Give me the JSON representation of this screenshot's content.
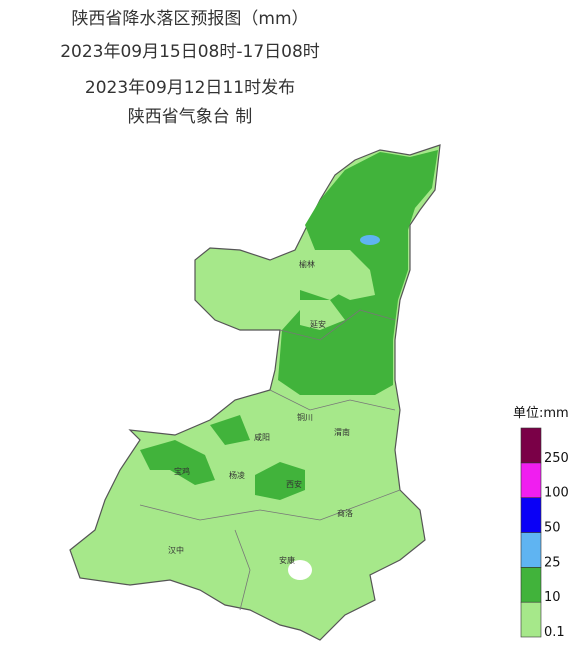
{
  "header": {
    "title": "陕西省降水落区预报图（mm）",
    "period": "2023年09月15日08时-17日08时",
    "issued": "2023年09月12日11时发布",
    "issuer": "陕西省气象台 制"
  },
  "cities": [
    "榆林",
    "延安",
    "铜川",
    "渭南",
    "咸阳",
    "宝鸡",
    "杨凌",
    "西安",
    "商洛",
    "汉中",
    "安康"
  ],
  "legend": {
    "title": "单位:mm",
    "ticks": [
      "0.1",
      "10",
      "25",
      "50",
      "100",
      "250"
    ],
    "colors": [
      "#a6e88a",
      "#41b33b",
      "#5fb4f2",
      "#0a00f6",
      "#f01ef0",
      "#7a0047"
    ]
  }
}
